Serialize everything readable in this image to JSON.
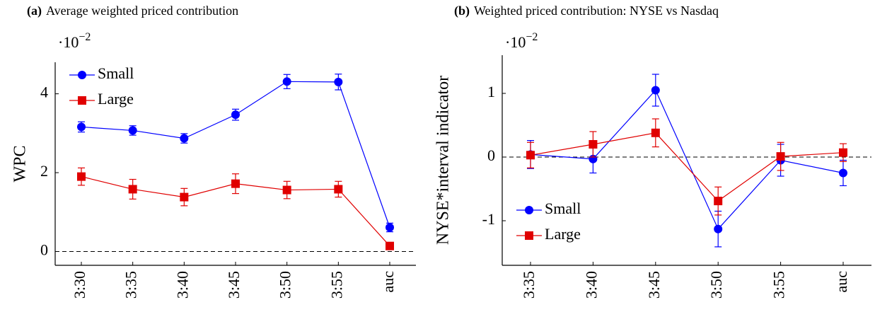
{
  "chart_data": [
    {
      "type": "line",
      "panel": "(a)",
      "title": "Average weighted priced contribution",
      "ylabel": "WPC",
      "scale_base": "·10",
      "scale_exponent": "−2",
      "categories": [
        "3:30",
        "3:35",
        "3:40",
        "3:45",
        "3:50",
        "3:55",
        "auc"
      ],
      "ylim": [
        -0.35,
        4.8
      ],
      "yticks": [
        0,
        2,
        4
      ],
      "reference_line": 0,
      "legend": "upper left",
      "series": [
        {
          "name": "Small",
          "color": "#0000ff",
          "marker": "circle",
          "values": [
            3.16,
            3.07,
            2.87,
            3.47,
            4.31,
            4.3,
            0.61
          ],
          "errors": [
            0.13,
            0.12,
            0.12,
            0.14,
            0.18,
            0.2,
            0.11
          ]
        },
        {
          "name": "Large",
          "color": "#e00000",
          "marker": "square",
          "values": [
            1.9,
            1.58,
            1.38,
            1.72,
            1.56,
            1.58,
            0.14
          ],
          "errors": [
            0.22,
            0.25,
            0.22,
            0.25,
            0.22,
            0.2,
            0.03
          ]
        }
      ]
    },
    {
      "type": "line",
      "panel": "(b)",
      "title": "Weighted priced contribution: NYSE vs Nasdaq",
      "ylabel": "NYSE*interval indicator",
      "scale_base": "·10",
      "scale_exponent": "−2",
      "categories": [
        "3:35",
        "3:40",
        "3:45",
        "3:50",
        "3:55",
        "auc"
      ],
      "ylim": [
        -1.7,
        1.6
      ],
      "yticks": [
        -1,
        0,
        1
      ],
      "reference_line": 0,
      "legend": "lower left",
      "series": [
        {
          "name": "Small",
          "color": "#0000ff",
          "marker": "circle",
          "values": [
            0.04,
            -0.03,
            1.05,
            -1.13,
            -0.05,
            -0.25
          ],
          "errors": [
            0.22,
            0.22,
            0.25,
            0.28,
            0.25,
            0.2
          ]
        },
        {
          "name": "Large",
          "color": "#e00000",
          "marker": "square",
          "values": [
            0.03,
            0.2,
            0.38,
            -0.69,
            0.01,
            0.07
          ],
          "errors": [
            0.2,
            0.2,
            0.22,
            0.22,
            0.22,
            0.14
          ]
        }
      ]
    }
  ]
}
